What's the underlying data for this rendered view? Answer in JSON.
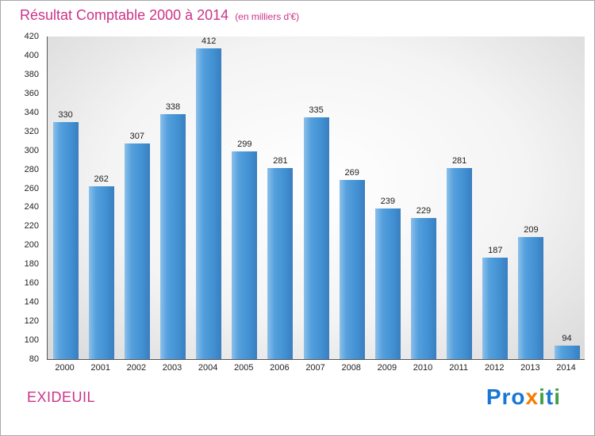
{
  "title": "Résultat Comptable 2000 à 2014",
  "subtitle": "(en milliers d'€)",
  "colors": {
    "accent_pink": "#cc3388",
    "bar_main": "#4190d2",
    "bar_light": "#8cc0ea",
    "bar_dark": "#3a7ec0",
    "axis": "#555555",
    "tick_text": "#222222"
  },
  "chart_data": {
    "type": "bar",
    "title": "Résultat Comptable 2000 à 2014",
    "subtitle": "(en milliers d'€)",
    "categories": [
      "2000",
      "2001",
      "2002",
      "2003",
      "2004",
      "2005",
      "2006",
      "2007",
      "2008",
      "2009",
      "2010",
      "2011",
      "2012",
      "2013",
      "2014"
    ],
    "values": [
      330,
      262,
      307,
      338,
      412,
      299,
      281,
      335,
      269,
      239,
      229,
      281,
      187,
      209,
      94
    ],
    "xlabel": "",
    "ylabel": "",
    "ylim": [
      80,
      420
    ],
    "ytick_step": 20,
    "grid": false,
    "legend": false,
    "bar_color": "#4190d2",
    "value_labels_shown": true
  },
  "footer": {
    "entity": "EXIDEUIL",
    "logo_text": "Proxiti",
    "logo_letters": [
      {
        "ch": "P",
        "color": "#1976d2"
      },
      {
        "ch": "r",
        "color": "#1976d2"
      },
      {
        "ch": "o",
        "color": "#1976d2"
      },
      {
        "ch": "x",
        "color": "#f57c00"
      },
      {
        "ch": "i",
        "color": "#43a047"
      },
      {
        "ch": "t",
        "color": "#1976d2"
      },
      {
        "ch": "i",
        "color": "#43a047"
      }
    ]
  }
}
